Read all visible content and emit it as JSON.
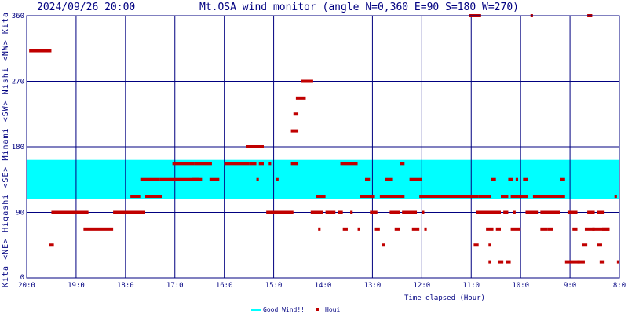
{
  "header": {
    "timestamp": "2024/09/26 20:00",
    "title": "Mt.OSA wind monitor (angle N=0,360 E=90 S=180 W=270)"
  },
  "chart_data": {
    "type": "scatter",
    "title": "Mt.OSA wind monitor (angle N=0,360 E=90 S=180 W=270)",
    "xlabel": "Time elapsed (Hour)",
    "ylabel": "Kita <NE> Higashi <SE> Minami <SW> Nishi <NW> Kita",
    "ylabel_parts": [
      "Kita",
      "<NE>",
      "Higashi",
      "<SE>",
      "Minami",
      "<SW>",
      "Nishi",
      "<NW>",
      "Kita"
    ],
    "x_hours_ago_range": [
      12,
      0
    ],
    "x_tick_labels": [
      "20:0",
      "19:0",
      "18:0",
      "17:0",
      "16:0",
      "15:0",
      "14:0",
      "13:0",
      "12:0",
      "11:0",
      "10:0",
      "9:0",
      "8:0"
    ],
    "ylim": [
      0,
      360
    ],
    "y_ticks": [
      0,
      90,
      180,
      270,
      360
    ],
    "grid": true,
    "good_wind_band": [
      108,
      162
    ],
    "colors": {
      "good_wind": "#00ffff",
      "houi": "#c00000",
      "axis": "#000080",
      "grid": "#000080"
    },
    "legend": {
      "position": "bottom-center",
      "entries": [
        "Good Wind!!",
        "Houi"
      ]
    },
    "series": [
      {
        "name": "Houi",
        "segments": [
          {
            "h": [
              11.95,
              11.5
            ],
            "y": 312
          },
          {
            "h": [
              11.5,
              10.75
            ],
            "y": 90
          },
          {
            "h": [
              11.55,
              11.45
            ],
            "y": 45
          },
          {
            "h": [
              10.85,
              10.25
            ],
            "y": 67
          },
          {
            "h": [
              10.25,
              9.6
            ],
            "y": 90
          },
          {
            "h": [
              9.9,
              9.7
            ],
            "y": 112
          },
          {
            "h": [
              9.7,
              9.3
            ],
            "y": 135
          },
          {
            "h": [
              9.6,
              9.25
            ],
            "y": 112
          },
          {
            "h": [
              9.3,
              8.45
            ],
            "y": 135
          },
          {
            "h": [
              9.05,
              8.6
            ],
            "y": 157
          },
          {
            "h": [
              8.65,
              8.5
            ],
            "y": 135
          },
          {
            "h": [
              8.6,
              8.25
            ],
            "y": 157
          },
          {
            "h": [
              8.3,
              8.1
            ],
            "y": 135
          },
          {
            "h": [
              8.0,
              7.5
            ],
            "y": 157
          },
          {
            "h": [
              7.55,
              7.2
            ],
            "y": 180
          },
          {
            "h": [
              7.5,
              7.35
            ],
            "y": 157
          },
          {
            "h": [
              7.3,
              7.2
            ],
            "y": 157
          },
          {
            "h": [
              7.35,
              7.3
            ],
            "y": 135
          },
          {
            "h": [
              7.15,
              6.6
            ],
            "y": 90
          },
          {
            "h": [
              7.1,
              7.05
            ],
            "y": 157
          },
          {
            "h": [
              6.95,
              6.9
            ],
            "y": 135
          },
          {
            "h": [
              6.65,
              6.5
            ],
            "y": 157
          },
          {
            "h": [
              6.65,
              6.5
            ],
            "y": 202
          },
          {
            "h": [
              6.6,
              6.5
            ],
            "y": 225
          },
          {
            "h": [
              6.55,
              6.35
            ],
            "y": 247
          },
          {
            "h": [
              6.45,
              6.2
            ],
            "y": 270
          },
          {
            "h": [
              6.25,
              6.0
            ],
            "y": 90
          },
          {
            "h": [
              6.15,
              5.95
            ],
            "y": 112
          },
          {
            "h": [
              6.1,
              6.05
            ],
            "y": 67
          },
          {
            "h": [
              5.95,
              5.75
            ],
            "y": 90
          },
          {
            "h": [
              5.65,
              5.3
            ],
            "y": 157
          },
          {
            "h": [
              5.7,
              5.6
            ],
            "y": 90
          },
          {
            "h": [
              5.6,
              5.5
            ],
            "y": 67
          },
          {
            "h": [
              5.45,
              5.4
            ],
            "y": 90
          },
          {
            "h": [
              5.3,
              5.25
            ],
            "y": 67
          },
          {
            "h": [
              5.25,
              4.95
            ],
            "y": 112
          },
          {
            "h": [
              5.15,
              5.05
            ],
            "y": 135
          },
          {
            "h": [
              5.05,
              4.9
            ],
            "y": 90
          },
          {
            "h": [
              4.95,
              4.85
            ],
            "y": 67
          },
          {
            "h": [
              4.85,
              4.35
            ],
            "y": 112
          },
          {
            "h": [
              4.8,
              4.75
            ],
            "y": 45
          },
          {
            "h": [
              4.75,
              4.6
            ],
            "y": 135
          },
          {
            "h": [
              4.65,
              4.45
            ],
            "y": 90
          },
          {
            "h": [
              4.55,
              4.45
            ],
            "y": 67
          },
          {
            "h": [
              4.45,
              4.35
            ],
            "y": 157
          },
          {
            "h": [
              4.4,
              4.1
            ],
            "y": 90
          },
          {
            "h": [
              4.25,
              4.0
            ],
            "y": 135
          },
          {
            "h": [
              4.2,
              4.05
            ],
            "y": 67
          },
          {
            "h": [
              4.05,
              2.85
            ],
            "y": 112
          },
          {
            "h": [
              4.0,
              3.95
            ],
            "y": 90
          },
          {
            "h": [
              3.95,
              3.9
            ],
            "y": 67
          },
          {
            "h": [
              3.05,
              2.8
            ],
            "y": 360
          },
          {
            "h": [
              2.95,
              2.85
            ],
            "y": 45
          },
          {
            "h": [
              2.9,
              2.4
            ],
            "y": 90
          },
          {
            "h": [
              2.85,
              2.6
            ],
            "y": 112
          },
          {
            "h": [
              2.7,
              2.55
            ],
            "y": 67
          },
          {
            "h": [
              2.65,
              2.6
            ],
            "y": 45
          },
          {
            "h": [
              2.65,
              2.6
            ],
            "y": 22
          },
          {
            "h": [
              2.6,
              2.5
            ],
            "y": 135
          },
          {
            "h": [
              2.5,
              2.4
            ],
            "y": 67
          },
          {
            "h": [
              2.45,
              2.35
            ],
            "y": 22
          },
          {
            "h": [
              2.4,
              2.25
            ],
            "y": 112
          },
          {
            "h": [
              2.35,
              2.25
            ],
            "y": 90
          },
          {
            "h": [
              2.3,
              2.2
            ],
            "y": 22
          },
          {
            "h": [
              2.25,
              2.15
            ],
            "y": 135
          },
          {
            "h": [
              2.2,
              2.05
            ],
            "y": 112
          },
          {
            "h": [
              2.2,
              2.0
            ],
            "y": 67
          },
          {
            "h": [
              2.15,
              2.1
            ],
            "y": 90
          },
          {
            "h": [
              2.1,
              2.05
            ],
            "y": 135
          },
          {
            "h": [
              2.05,
              1.85
            ],
            "y": 112
          },
          {
            "h": [
              1.95,
              1.85
            ],
            "y": 135
          },
          {
            "h": [
              1.9,
              1.65
            ],
            "y": 90
          },
          {
            "h": [
              1.8,
              1.75
            ],
            "y": 360
          },
          {
            "h": [
              1.75,
              1.1
            ],
            "y": 112
          },
          {
            "h": [
              1.6,
              1.45
            ],
            "y": 67
          },
          {
            "h": [
              1.6,
              1.2
            ],
            "y": 90
          },
          {
            "h": [
              1.45,
              1.35
            ],
            "y": 67
          },
          {
            "h": [
              1.2,
              1.1
            ],
            "y": 135
          },
          {
            "h": [
              1.1,
              0.8
            ],
            "y": 22
          },
          {
            "h": [
              1.05,
              0.85
            ],
            "y": 90
          },
          {
            "h": [
              0.85,
              0.7
            ],
            "y": 22
          },
          {
            "h": [
              0.75,
              0.65
            ],
            "y": 45
          },
          {
            "h": [
              0.7,
              0.5
            ],
            "y": 67
          },
          {
            "h": [
              0.65,
              0.5
            ],
            "y": 90
          },
          {
            "h": [
              0.65,
              0.55
            ],
            "y": 360
          },
          {
            "h": [
              0.55,
              0.2
            ],
            "y": 67
          },
          {
            "h": [
              0.45,
              0.3
            ],
            "y": 90
          },
          {
            "h": [
              0.45,
              0.35
            ],
            "y": 45
          },
          {
            "h": [
              0.35,
              0.2
            ],
            "y": 67
          },
          {
            "h": [
              0.1,
              0.05
            ],
            "y": 112
          },
          {
            "h": [
              0.05,
              0.0
            ],
            "y": 22
          },
          {
            "h": [
              0.95,
              0.85
            ],
            "y": 67
          },
          {
            "h": [
              0.4,
              0.3
            ],
            "y": 22
          }
        ]
      }
    ]
  }
}
